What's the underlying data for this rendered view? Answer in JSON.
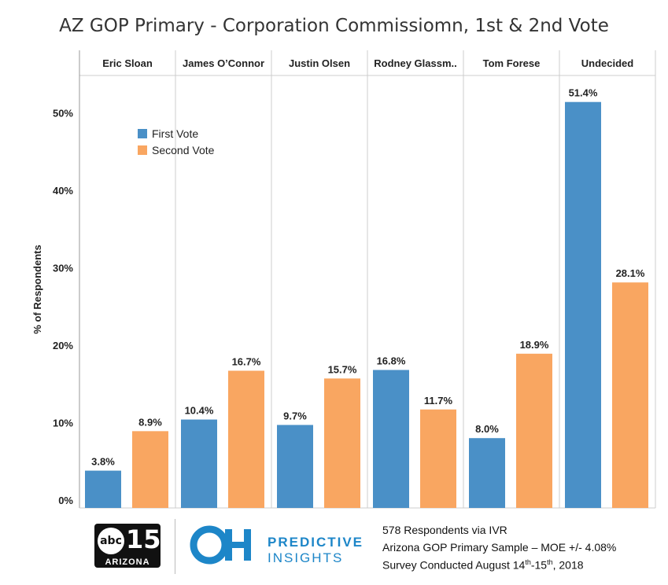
{
  "chart_data": {
    "type": "bar",
    "title": "AZ GOP Primary - Corporation Commissiomn, 1st & 2nd Vote",
    "categories": [
      "Eric Sloan",
      "James O’Connor",
      "Justin Olsen",
      "Rodney Glassm..",
      "Tom Forese",
      "Undecided"
    ],
    "series": [
      {
        "name": "First Vote",
        "color": "#4a90c7",
        "values": [
          3.8,
          10.4,
          9.7,
          16.8,
          8.0,
          51.4
        ],
        "labels": [
          "3.8%",
          "10.4%",
          "9.7%",
          "16.8%",
          "8.0%",
          "51.4%"
        ]
      },
      {
        "name": "Second Vote",
        "color": "#f9a661",
        "values": [
          8.9,
          16.7,
          15.7,
          11.7,
          18.9,
          28.1
        ],
        "labels": [
          "8.9%",
          "16.7%",
          "15.7%",
          "11.7%",
          "18.9%",
          "28.1%"
        ]
      }
    ],
    "ylabel": "% of Respondents",
    "ylim": [
      0,
      56
    ],
    "yticks": [
      0,
      10,
      20,
      30,
      40,
      50
    ],
    "ytick_labels": [
      "0%",
      "10%",
      "20%",
      "30%",
      "40%",
      "50%"
    ],
    "legend_position": "top-left",
    "grid": false
  },
  "footer": {
    "abc_circle": "abc",
    "abc_number": "15",
    "abc_state": "ARIZONA",
    "brand_top": "PREDICTIVE",
    "brand_bottom": "INSIGHTS",
    "note_line1": "578 Respondents via IVR",
    "note_line2": "Arizona GOP Primary Sample – MOE +/- 4.08%",
    "note_line3_prefix": "Survey Conducted August 14",
    "note_line3_sup1": "th",
    "note_line3_mid": "-15",
    "note_line3_sup2": "th",
    "note_line3_suffix": ", 2018"
  }
}
